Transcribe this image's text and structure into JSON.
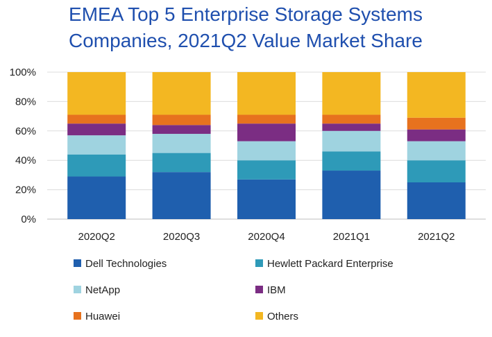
{
  "chart_data": {
    "type": "bar",
    "stacked": true,
    "title_lines": [
      "EMEA Top 5 Enterprise Storage Systems",
      "Companies, 2021Q2 Value Market Share"
    ],
    "xlabel": "",
    "ylabel": "",
    "ylim": [
      0,
      100
    ],
    "y_ticks": [
      0,
      20,
      40,
      60,
      80,
      100
    ],
    "y_tick_labels": [
      "0%",
      "20%",
      "40%",
      "60%",
      "80%",
      "100%"
    ],
    "grid": true,
    "legend_position": "bottom",
    "categories": [
      "2020Q2",
      "2020Q3",
      "2020Q4",
      "2021Q1",
      "2021Q2"
    ],
    "series": [
      {
        "name": "Dell Technologies",
        "color": "#1f5fae",
        "values": [
          29,
          32,
          27,
          33,
          25
        ]
      },
      {
        "name": "Hewlett Packard Enterprise",
        "color": "#2e9ab8",
        "values": [
          15,
          13,
          13,
          13,
          15
        ]
      },
      {
        "name": "NetApp",
        "color": "#9fd3e0",
        "values": [
          13,
          13,
          13,
          14,
          13
        ]
      },
      {
        "name": "IBM",
        "color": "#7b2d83",
        "values": [
          8,
          6,
          12,
          5,
          8
        ]
      },
      {
        "name": "Huawei",
        "color": "#e7721e",
        "values": [
          6,
          7,
          6,
          6,
          8
        ]
      },
      {
        "name": "Others",
        "color": "#f3b722",
        "values": [
          29,
          29,
          29,
          29,
          31
        ]
      }
    ]
  }
}
